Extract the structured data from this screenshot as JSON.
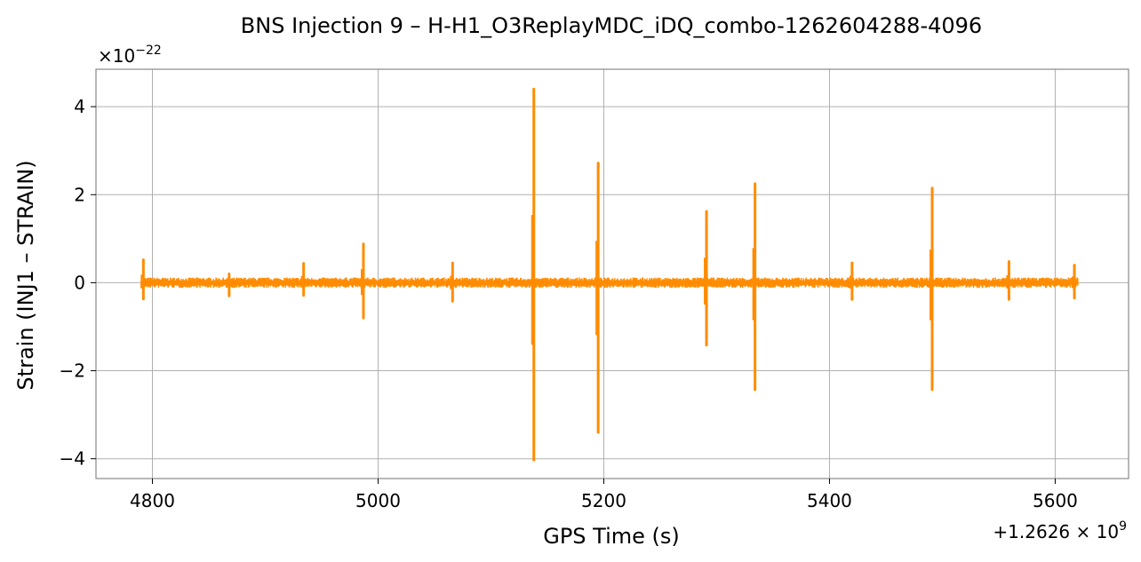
{
  "chart_data": {
    "type": "line",
    "title": "BNS Injection 9 – H-H1_O3ReplayMDC_iDQ_combo-1262604288-4096",
    "xlabel": "GPS Time (s)",
    "ylabel": "Strain (INJ1 – STRAIN)",
    "x_offset_label": "+1.2626 × 10",
    "x_offset_exp": "9",
    "y_scale_label": "×10",
    "y_scale_exp": "−22",
    "xlim": [
      4750,
      5665
    ],
    "ylim": [
      -4.45,
      4.85
    ],
    "xticks": [
      4800,
      5000,
      5200,
      5400,
      5600
    ],
    "xtick_labels": [
      "4800",
      "5000",
      "5200",
      "5400",
      "5600"
    ],
    "yticks": [
      -4,
      -2,
      0,
      2,
      4
    ],
    "ytick_labels": [
      "−4",
      "−2",
      "0",
      "2",
      "4"
    ],
    "grid": true,
    "series": [
      {
        "color": "#ff8c00",
        "x_range": [
          4790,
          5620
        ],
        "baseline_amplitude": 0.12,
        "glitches": [
          {
            "x": 4792,
            "max": 0.52,
            "min": -0.37
          },
          {
            "x": 4868,
            "max": 0.2,
            "min": -0.3
          },
          {
            "x": 4934,
            "max": 0.44,
            "min": -0.29
          },
          {
            "x": 4987,
            "max": 0.88,
            "min": -0.8
          },
          {
            "x": 5066,
            "max": 0.45,
            "min": -0.42
          },
          {
            "x": 5138,
            "max": 4.4,
            "min": -4.03
          },
          {
            "x": 5195,
            "max": 2.72,
            "min": -3.4
          },
          {
            "x": 5291,
            "max": 1.62,
            "min": -1.42
          },
          {
            "x": 5334,
            "max": 2.25,
            "min": -2.43
          },
          {
            "x": 5420,
            "max": 0.45,
            "min": -0.38
          },
          {
            "x": 5491,
            "max": 2.15,
            "min": -2.43
          },
          {
            "x": 5559,
            "max": 0.48,
            "min": -0.38
          },
          {
            "x": 5617,
            "max": 0.4,
            "min": -0.35
          }
        ]
      }
    ]
  }
}
